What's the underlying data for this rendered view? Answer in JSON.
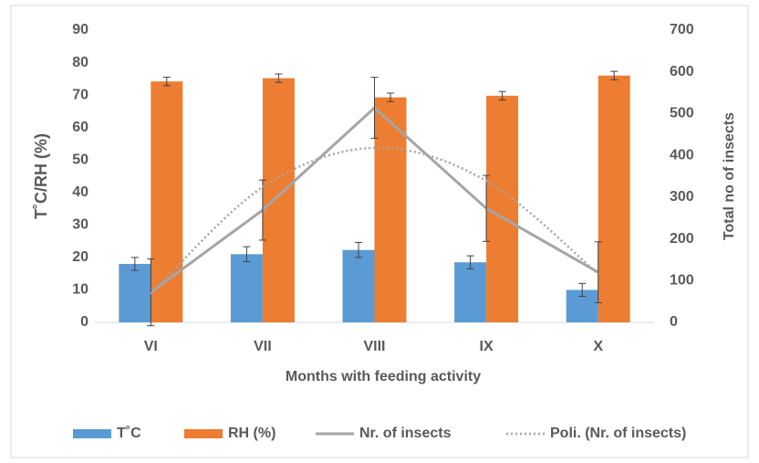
{
  "chart_data": {
    "type": "bar_line",
    "x_label": "Months with feeding activity",
    "y_label": "T˚C/RH (%)",
    "y2_label": "Total no of insects",
    "categories": [
      "VI",
      "VII",
      "VIII",
      "IX",
      "X"
    ],
    "ylim": [
      0,
      90
    ],
    "yticks": [
      0,
      10,
      20,
      30,
      40,
      50,
      60,
      70,
      80,
      90
    ],
    "y2lim": [
      0,
      700
    ],
    "y2ticks": [
      0,
      100,
      200,
      300,
      400,
      500,
      600,
      700
    ],
    "series": [
      {
        "name": "T˚C",
        "kind": "bar",
        "color": "#5b9bd5",
        "values": [
          18,
          21,
          22.3,
          18.5,
          10
        ],
        "errors": [
          2,
          2.3,
          2.3,
          2,
          2
        ]
      },
      {
        "name": "RH (%)",
        "kind": "bar",
        "color": "#ed7d31",
        "values": [
          74.2,
          75.2,
          69.3,
          69.8,
          76
        ],
        "errors": [
          1.3,
          1.3,
          1.3,
          1.3,
          1.3
        ]
      },
      {
        "name": "Nr. of insects",
        "kind": "line",
        "axis": "y2",
        "color": "#a5a5a5",
        "values": [
          72,
          269,
          514,
          273,
          120
        ],
        "errors": [
          80,
          72,
          73,
          79,
          73
        ]
      },
      {
        "name": "Poli. (Nr. of insects)",
        "kind": "trend",
        "axis": "y2",
        "color": "#a5a5a5",
        "values": [
          68,
          324,
          418,
          339,
          116
        ]
      }
    ],
    "legend": "bottom"
  }
}
